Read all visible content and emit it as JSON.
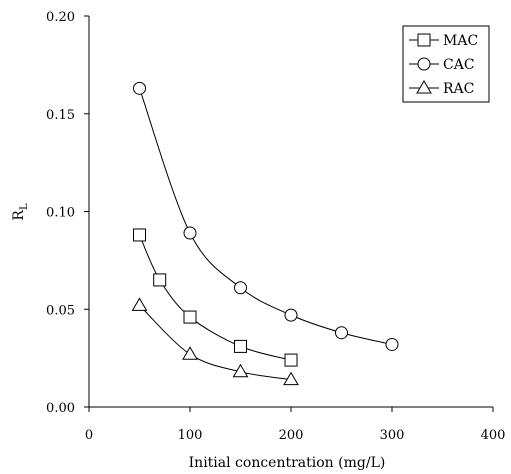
{
  "chart_data": {
    "type": "line",
    "xlabel": "Initial concentration (mg/L)",
    "ylabel": "R",
    "ylabel_sub": "L",
    "xlim": [
      0,
      400
    ],
    "ylim": [
      0,
      0.2
    ],
    "x_ticks": [
      0,
      100,
      200,
      300,
      400
    ],
    "y_ticks": [
      0,
      0.05,
      0.1,
      0.15,
      0.2
    ],
    "x_tick_labels": [
      "0",
      "100",
      "200",
      "300",
      "400"
    ],
    "y_tick_labels": [
      "0.00",
      "0.05",
      "0.10",
      "0.15",
      "0.20"
    ],
    "grid": false,
    "legend_position": "top-right",
    "series": [
      {
        "name": "MAC",
        "marker": "square",
        "points": [
          [
            50,
            0.088
          ],
          [
            70,
            0.065
          ],
          [
            100,
            0.046
          ],
          [
            150,
            0.031
          ],
          [
            200,
            0.024
          ]
        ]
      },
      {
        "name": "CAC",
        "marker": "circle",
        "points": [
          [
            50,
            0.163
          ],
          [
            100,
            0.089
          ],
          [
            150,
            0.061
          ],
          [
            200,
            0.047
          ],
          [
            250,
            0.038
          ],
          [
            300,
            0.032
          ]
        ]
      },
      {
        "name": "RAC",
        "marker": "triangle",
        "points": [
          [
            50,
            0.052
          ],
          [
            100,
            0.027
          ],
          [
            150,
            0.018
          ],
          [
            200,
            0.014
          ]
        ]
      }
    ]
  }
}
